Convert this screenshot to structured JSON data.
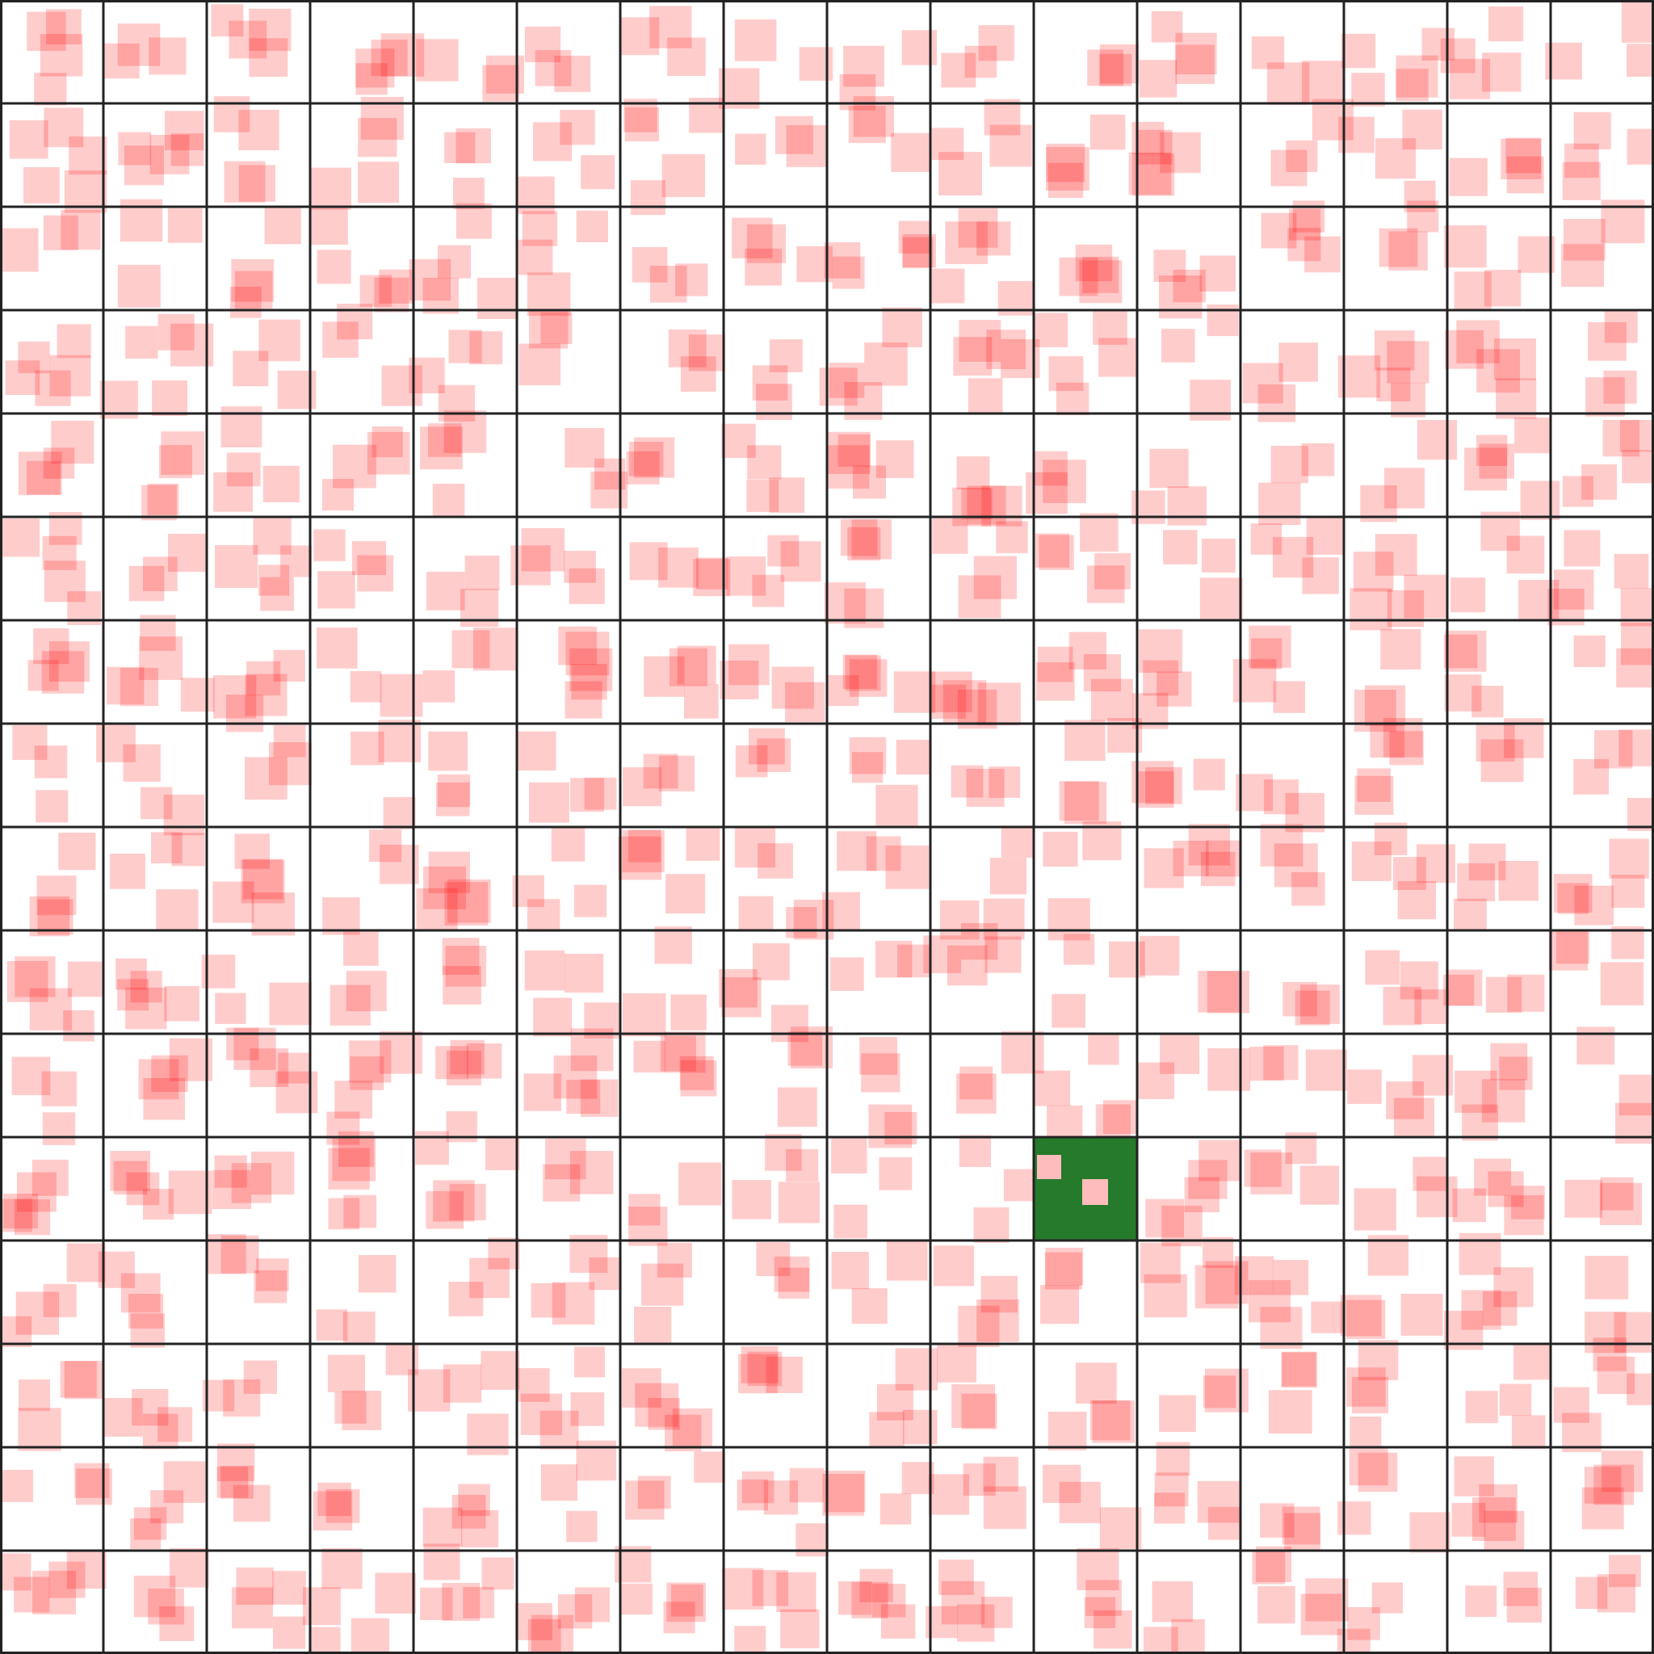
{
  "grid": {
    "rows": 16,
    "cols": 16
  },
  "colors": {
    "background": "#ffffff",
    "grid_line": "#222222",
    "marker_fill": "#ff0000",
    "marker_opacity": 0.2,
    "highlight_cell": "#257a2b",
    "highlight_marker": "#ffbcbc"
  },
  "highlight": {
    "row": 11,
    "col": 10
  }
}
